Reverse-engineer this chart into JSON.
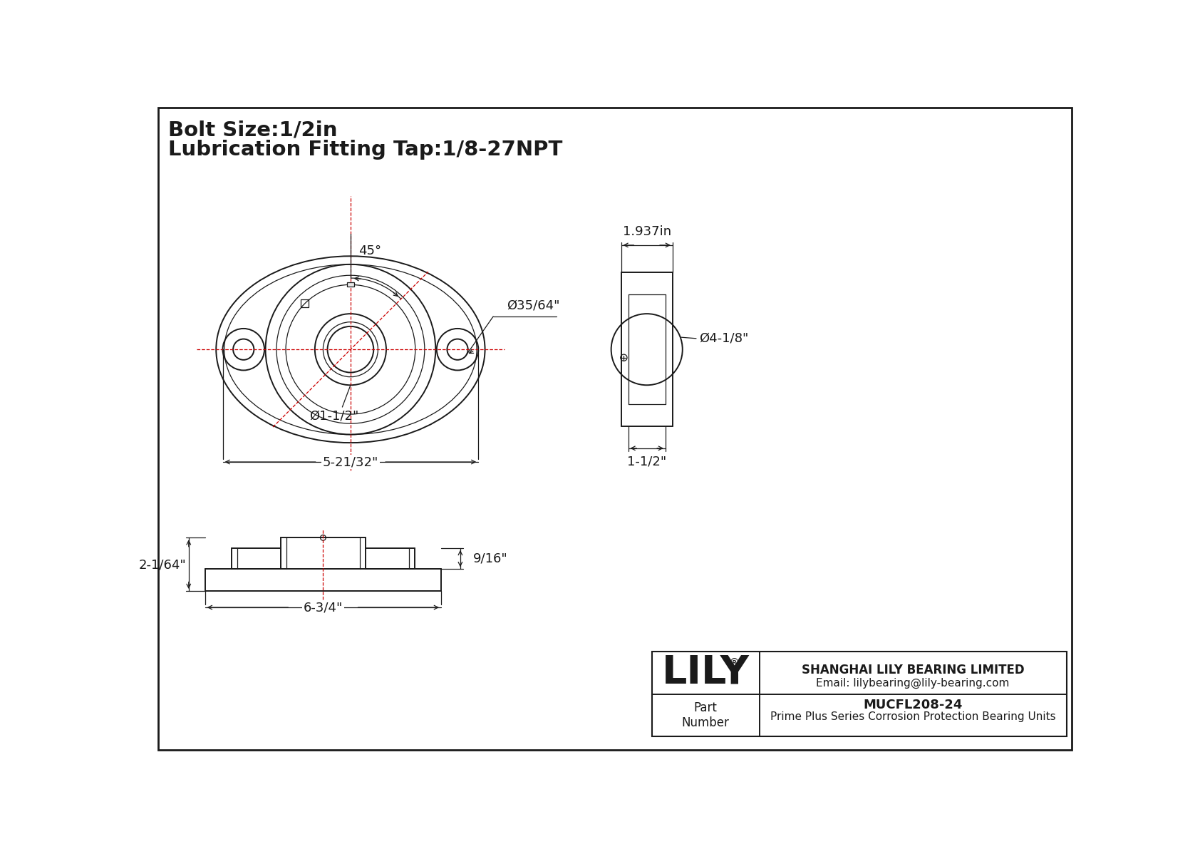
{
  "title_line1": "Bolt Size:1/2in",
  "title_line2": "Lubrication Fitting Tap:1/8-27NPT",
  "bg_color": "#ffffff",
  "border_color": "#000000",
  "drawing_color": "#1a1a1a",
  "red_color": "#cc0000",
  "dim_color": "#1a1a1a",
  "company_name": "SHANGHAI LILY BEARING LIMITED",
  "company_email": "Email: lilybearing@lily-bearing.com",
  "part_number": "MUCFL208-24",
  "part_desc": "Prime Plus Series Corrosion Protection Bearing Units",
  "part_label": "Part\nNumber",
  "lily_text": "LILY",
  "dim_45": "45°",
  "dim_35_64": "Ø35/64\"",
  "dim_1_1_2_bore": "Ø1-1/2\"",
  "dim_5_21_32": "5-21/32\"",
  "dim_1_937": "1.937in",
  "dim_4_1_8": "Ø4-1/8\"",
  "dim_1_1_2_side": "1-1/2\"",
  "dim_2_1_64": "2-1/64\"",
  "dim_9_16": "9/16\"",
  "dim_6_3_4": "6-3/4\""
}
